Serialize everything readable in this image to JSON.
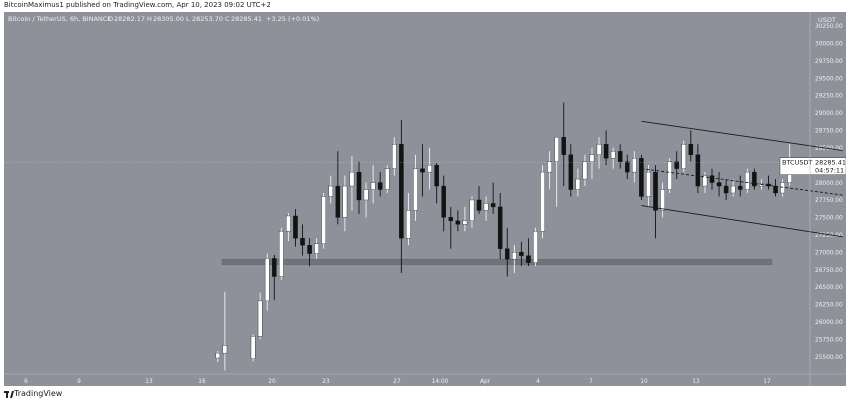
{
  "header": {
    "published": "BitcoinMaximus1 published on TradingView.com, Apr 10, 2023 09:02 UTC+2"
  },
  "footer": {
    "brand": "TradingView"
  },
  "colors": {
    "background": "#8e9199",
    "up_candle": "#ffffff",
    "down_candle": "#131313",
    "channel_line": "#1a1a1a",
    "support_zone": "#707379",
    "price_label_bg": "#ffffff"
  },
  "chart_data": {
    "type": "candlestick",
    "title": "Bitcoin / TetherUS, 6h, BINANCE",
    "legend": {
      "symbol": "Bitcoin / TetherUS, 6h, BINANCE",
      "o_label": "O",
      "o": "28282.17",
      "h_label": "H",
      "h": "28305.00",
      "l_label": "L",
      "l": "28253.70",
      "c_label": "C",
      "c": "28285.41",
      "change": "+3.25 (+0.01%)"
    },
    "currency": "USDT",
    "y_ticks": [
      "30250.00",
      "30000.00",
      "29750.00",
      "29500.00",
      "29250.00",
      "29000.00",
      "28750.00",
      "28500.00",
      "28250.00",
      "28000.00",
      "27750.00",
      "27500.00",
      "27250.00",
      "27000.00",
      "26750.00",
      "26500.00",
      "26250.00",
      "26000.00",
      "25750.00",
      "25500.00"
    ],
    "ylim": [
      25250,
      30450
    ],
    "x_ticks": [
      "6",
      "9",
      "13",
      "16",
      "20",
      "23",
      "27",
      "14:00",
      "Apr",
      "4",
      "7",
      "10",
      "13",
      "17"
    ],
    "last_price_label": {
      "symbol": "BTCUSDT",
      "price": "28285.41",
      "countdown": "04:57:11"
    },
    "support_zone": [
      26820,
      26900
    ],
    "channel": {
      "upper": {
        "from": [
          90.0,
          28880
        ],
        "to": [
          118.5,
          28460
        ]
      },
      "lower": {
        "from": [
          90.0,
          27670
        ],
        "to": [
          118.5,
          27220
        ]
      },
      "mid": {
        "from": [
          90.0,
          28200
        ],
        "to": [
          118.5,
          27820
        ]
      }
    },
    "candles": [
      {
        "t": 30.0,
        "o": 25480,
        "h": 25580,
        "l": 25420,
        "c": 25550
      },
      {
        "t": 31.0,
        "o": 25550,
        "h": 26430,
        "l": 25300,
        "c": 25660
      },
      {
        "t": 35.0,
        "o": 25470,
        "h": 25820,
        "l": 25430,
        "c": 25790
      },
      {
        "t": 36.0,
        "o": 25790,
        "h": 26420,
        "l": 25750,
        "c": 26300
      },
      {
        "t": 37.0,
        "o": 26300,
        "h": 26980,
        "l": 26160,
        "c": 26910
      },
      {
        "t": 38.0,
        "o": 26910,
        "h": 26960,
        "l": 26310,
        "c": 26650
      },
      {
        "t": 39.0,
        "o": 26650,
        "h": 27350,
        "l": 26600,
        "c": 27300
      },
      {
        "t": 40.0,
        "o": 27300,
        "h": 27560,
        "l": 27160,
        "c": 27520
      },
      {
        "t": 41.0,
        "o": 27520,
        "h": 27620,
        "l": 27080,
        "c": 27200
      },
      {
        "t": 42.0,
        "o": 27200,
        "h": 27400,
        "l": 26950,
        "c": 27100
      },
      {
        "t": 43.0,
        "o": 27100,
        "h": 27200,
        "l": 26800,
        "c": 26980
      },
      {
        "t": 44.0,
        "o": 26980,
        "h": 27200,
        "l": 26900,
        "c": 27120
      },
      {
        "t": 45.0,
        "o": 27120,
        "h": 27850,
        "l": 27050,
        "c": 27800
      },
      {
        "t": 46.0,
        "o": 27800,
        "h": 28100,
        "l": 27700,
        "c": 27950
      },
      {
        "t": 47.0,
        "o": 27950,
        "h": 28450,
        "l": 27400,
        "c": 27500
      },
      {
        "t": 48.0,
        "o": 27500,
        "h": 28100,
        "l": 27300,
        "c": 27950
      },
      {
        "t": 49.0,
        "o": 27950,
        "h": 28380,
        "l": 27600,
        "c": 28150
      },
      {
        "t": 50.0,
        "o": 28150,
        "h": 28300,
        "l": 27550,
        "c": 27750
      },
      {
        "t": 51.0,
        "o": 27750,
        "h": 28000,
        "l": 27500,
        "c": 27900
      },
      {
        "t": 52.0,
        "o": 27900,
        "h": 28250,
        "l": 27700,
        "c": 28000
      },
      {
        "t": 53.0,
        "o": 28000,
        "h": 28150,
        "l": 27800,
        "c": 27900
      },
      {
        "t": 54.0,
        "o": 27900,
        "h": 28250,
        "l": 27850,
        "c": 28200
      },
      {
        "t": 55.0,
        "o": 28200,
        "h": 28650,
        "l": 28100,
        "c": 28550
      },
      {
        "t": 56.0,
        "o": 28550,
        "h": 28900,
        "l": 26700,
        "c": 27200
      },
      {
        "t": 57.0,
        "o": 27200,
        "h": 27850,
        "l": 27100,
        "c": 27600
      },
      {
        "t": 58.0,
        "o": 27600,
        "h": 28400,
        "l": 27450,
        "c": 28200
      },
      {
        "t": 59.0,
        "o": 28200,
        "h": 28550,
        "l": 27800,
        "c": 28150
      },
      {
        "t": 60.0,
        "o": 28150,
        "h": 28500,
        "l": 27900,
        "c": 28250
      },
      {
        "t": 61.0,
        "o": 28250,
        "h": 28280,
        "l": 27700,
        "c": 27950
      },
      {
        "t": 62.0,
        "o": 27950,
        "h": 28100,
        "l": 27300,
        "c": 27500
      },
      {
        "t": 63.0,
        "o": 27500,
        "h": 27650,
        "l": 27050,
        "c": 27450
      },
      {
        "t": 64.0,
        "o": 27450,
        "h": 27600,
        "l": 27300,
        "c": 27400
      },
      {
        "t": 65.0,
        "o": 27400,
        "h": 27650,
        "l": 27300,
        "c": 27450
      },
      {
        "t": 66.0,
        "o": 27450,
        "h": 27800,
        "l": 27350,
        "c": 27750
      },
      {
        "t": 67.0,
        "o": 27750,
        "h": 27950,
        "l": 27550,
        "c": 27600
      },
      {
        "t": 68.0,
        "o": 27600,
        "h": 27800,
        "l": 27450,
        "c": 27700
      },
      {
        "t": 69.0,
        "o": 27700,
        "h": 28000,
        "l": 27550,
        "c": 27650
      },
      {
        "t": 70.0,
        "o": 27650,
        "h": 27850,
        "l": 26900,
        "c": 27050
      },
      {
        "t": 71.0,
        "o": 27050,
        "h": 27350,
        "l": 26650,
        "c": 26900
      },
      {
        "t": 72.0,
        "o": 26900,
        "h": 27100,
        "l": 26700,
        "c": 27000
      },
      {
        "t": 73.0,
        "o": 27000,
        "h": 27150,
        "l": 26800,
        "c": 26950
      },
      {
        "t": 74.0,
        "o": 26950,
        "h": 27200,
        "l": 26800,
        "c": 26850
      },
      {
        "t": 75.0,
        "o": 26850,
        "h": 27350,
        "l": 26800,
        "c": 27300
      },
      {
        "t": 76.0,
        "o": 27300,
        "h": 28250,
        "l": 27200,
        "c": 28150
      },
      {
        "t": 77.0,
        "o": 28150,
        "h": 28450,
        "l": 27900,
        "c": 28300
      },
      {
        "t": 78.0,
        "o": 28300,
        "h": 28650,
        "l": 27650,
        "c": 28650
      },
      {
        "t": 79.0,
        "o": 28650,
        "h": 29150,
        "l": 27950,
        "c": 28400
      },
      {
        "t": 80.0,
        "o": 28400,
        "h": 28550,
        "l": 27800,
        "c": 27900
      },
      {
        "t": 81.0,
        "o": 27900,
        "h": 28200,
        "l": 27800,
        "c": 28050
      },
      {
        "t": 82.0,
        "o": 28050,
        "h": 28400,
        "l": 27950,
        "c": 28300
      },
      {
        "t": 83.0,
        "o": 28300,
        "h": 28500,
        "l": 28050,
        "c": 28400
      },
      {
        "t": 84.0,
        "o": 28400,
        "h": 28650,
        "l": 28200,
        "c": 28550
      },
      {
        "t": 85.0,
        "o": 28550,
        "h": 28750,
        "l": 28250,
        "c": 28350
      },
      {
        "t": 86.0,
        "o": 28350,
        "h": 28500,
        "l": 28200,
        "c": 28450
      },
      {
        "t": 87.0,
        "o": 28450,
        "h": 28550,
        "l": 28200,
        "c": 28300
      },
      {
        "t": 88.0,
        "o": 28300,
        "h": 28400,
        "l": 28050,
        "c": 28150
      },
      {
        "t": 89.0,
        "o": 28150,
        "h": 28450,
        "l": 28000,
        "c": 28350
      },
      {
        "t": 90.0,
        "o": 28350,
        "h": 28400,
        "l": 27750,
        "c": 27800
      },
      {
        "t": 91.0,
        "o": 27800,
        "h": 28250,
        "l": 27650,
        "c": 28150
      },
      {
        "t": 92.0,
        "o": 28150,
        "h": 28250,
        "l": 27200,
        "c": 27600
      },
      {
        "t": 93.0,
        "o": 27600,
        "h": 28000,
        "l": 27500,
        "c": 27900
      },
      {
        "t": 94.0,
        "o": 27900,
        "h": 28350,
        "l": 27850,
        "c": 28300
      },
      {
        "t": 95.0,
        "o": 28300,
        "h": 28450,
        "l": 28050,
        "c": 28200
      },
      {
        "t": 96.0,
        "o": 28200,
        "h": 28600,
        "l": 28150,
        "c": 28550
      },
      {
        "t": 97.0,
        "o": 28550,
        "h": 28750,
        "l": 28300,
        "c": 28400
      },
      {
        "t": 98.0,
        "o": 28400,
        "h": 28550,
        "l": 27850,
        "c": 27950
      },
      {
        "t": 99.0,
        "o": 27950,
        "h": 28150,
        "l": 27850,
        "c": 28100
      },
      {
        "t": 100.0,
        "o": 28100,
        "h": 28200,
        "l": 27900,
        "c": 28000
      },
      {
        "t": 101.0,
        "o": 28000,
        "h": 28150,
        "l": 27800,
        "c": 27950
      },
      {
        "t": 102.0,
        "o": 27950,
        "h": 28050,
        "l": 27750,
        "c": 27850
      },
      {
        "t": 103.0,
        "o": 27850,
        "h": 28050,
        "l": 27800,
        "c": 27950
      },
      {
        "t": 104.0,
        "o": 27950,
        "h": 28100,
        "l": 27800,
        "c": 27900
      },
      {
        "t": 105.0,
        "o": 27900,
        "h": 28200,
        "l": 27850,
        "c": 28150
      },
      {
        "t": 106.0,
        "o": 28150,
        "h": 28200,
        "l": 27900,
        "c": 27950
      },
      {
        "t": 107.0,
        "o": 27950,
        "h": 28050,
        "l": 27900,
        "c": 27980
      },
      {
        "t": 108.0,
        "o": 27980,
        "h": 28100,
        "l": 27900,
        "c": 27950
      },
      {
        "t": 109.0,
        "o": 27950,
        "h": 28050,
        "l": 27800,
        "c": 27850
      },
      {
        "t": 110.0,
        "o": 27850,
        "h": 28050,
        "l": 27800,
        "c": 28000
      },
      {
        "t": 111.0,
        "o": 28000,
        "h": 28550,
        "l": 27950,
        "c": 28330
      },
      {
        "t": 112.0,
        "o": 28330,
        "h": 28350,
        "l": 28250,
        "c": 28285
      }
    ]
  }
}
